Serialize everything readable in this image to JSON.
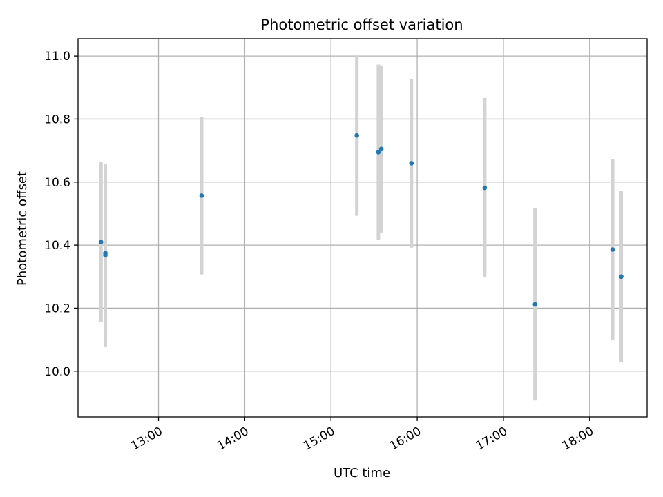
{
  "chart_data": {
    "type": "scatter",
    "title": "Photometric offset variation",
    "xlabel": "UTC time",
    "ylabel": "Photometric offset",
    "x_range": [
      "12:04",
      "18:40"
    ],
    "ylim": [
      9.855,
      11.055
    ],
    "x_ticks": [
      "13:00",
      "14:00",
      "15:00",
      "16:00",
      "17:00",
      "18:00"
    ],
    "y_ticks": [
      10.0,
      10.2,
      10.4,
      10.6,
      10.8,
      11.0
    ],
    "y_tick_labels": [
      "10.0",
      "10.2",
      "10.4",
      "10.6",
      "10.8",
      "11.0"
    ],
    "grid": true,
    "colors": {
      "point": "#1f77b4",
      "errorbar": "#d3d3d3",
      "grid": "#b0b0b0"
    },
    "points": [
      {
        "time": "12:20",
        "y": 10.41,
        "err": 0.255
      },
      {
        "time": "12:23",
        "y": 10.375,
        "err": 0.28
      },
      {
        "time": "12:23",
        "y": 10.368,
        "err": 0.29
      },
      {
        "time": "13:30",
        "y": 10.557,
        "err": 0.25
      },
      {
        "time": "15:18",
        "y": 10.748,
        "err": 0.255
      },
      {
        "time": "15:33",
        "y": 10.695,
        "err": 0.278
      },
      {
        "time": "15:35",
        "y": 10.705,
        "err": 0.265
      },
      {
        "time": "15:56",
        "y": 10.66,
        "err": 0.268
      },
      {
        "time": "16:47",
        "y": 10.582,
        "err": 0.285
      },
      {
        "time": "17:22",
        "y": 10.212,
        "err": 0.305
      },
      {
        "time": "18:16",
        "y": 10.386,
        "err": 0.288
      },
      {
        "time": "18:22",
        "y": 10.3,
        "err": 0.272
      }
    ]
  }
}
